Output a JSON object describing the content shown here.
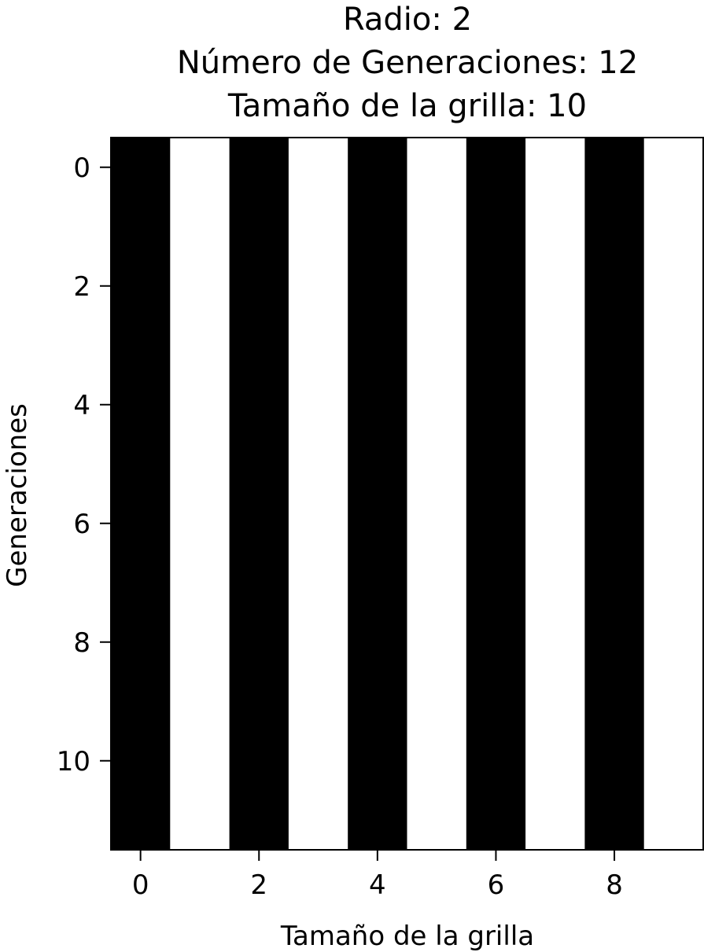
{
  "chart_data": {
    "type": "heatmap",
    "title_lines": [
      "Radio: 2",
      "Número de Generaciones: 12",
      "Tamaño de la grilla: 10"
    ],
    "xlabel": "Tamaño de la grilla",
    "ylabel": "Generaciones",
    "x_ticks": [
      "0",
      "2",
      "4",
      "6",
      "8"
    ],
    "y_ticks": [
      "0",
      "2",
      "4",
      "6",
      "8",
      "10"
    ],
    "x_tick_values": [
      0,
      2,
      4,
      6,
      8
    ],
    "y_tick_values": [
      0,
      2,
      4,
      6,
      8,
      10
    ],
    "xlim": [
      -0.5,
      9.5
    ],
    "ylim": [
      11.5,
      -0.5
    ],
    "n_rows": 12,
    "n_cols": 10,
    "cell_colors": {
      "1": "#000000",
      "0": "#ffffff"
    },
    "row_pattern": [
      1,
      0,
      1,
      0,
      1,
      0,
      1,
      0,
      1,
      0
    ],
    "grid": false,
    "legend": "none"
  }
}
